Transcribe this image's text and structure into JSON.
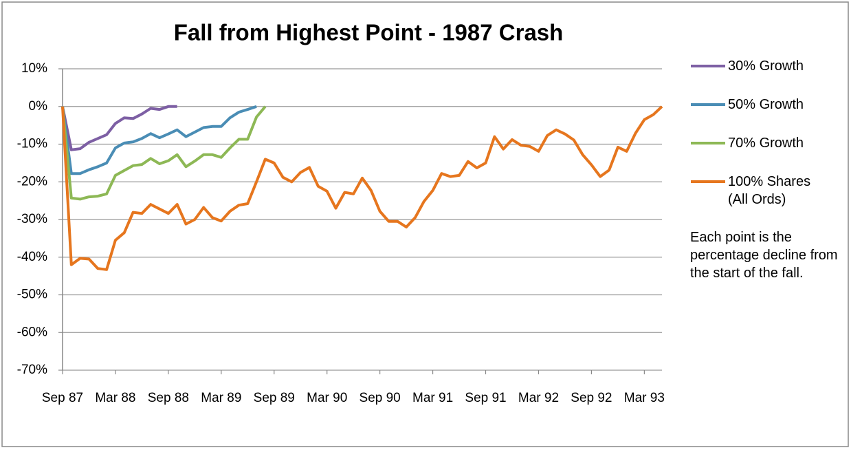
{
  "chart_data": {
    "type": "line",
    "title": "Fall from Highest Point - 1987 Crash",
    "annotation": "Each point is the percentage decline from the start of the fall.",
    "categories": [
      "Sep 87",
      null,
      null,
      null,
      null,
      null,
      "Mar 88",
      null,
      null,
      null,
      null,
      null,
      "Sep 88",
      null,
      null,
      null,
      null,
      null,
      "Mar 89",
      null,
      null,
      null,
      null,
      null,
      "Sep 89",
      null,
      null,
      null,
      null,
      null,
      "Mar 90",
      null,
      null,
      null,
      null,
      null,
      "Sep 90",
      null,
      null,
      null,
      null,
      null,
      "Mar 91",
      null,
      null,
      null,
      null,
      null,
      "Sep 91",
      null,
      null,
      null,
      null,
      null,
      "Mar 92",
      null,
      null,
      null,
      null,
      null,
      "Sep 92",
      null,
      null,
      null,
      null,
      null,
      "Mar 93",
      null,
      null
    ],
    "ylim": [
      -70,
      10
    ],
    "yticks": [
      {
        "value": 10,
        "label": "10%"
      },
      {
        "value": 0,
        "label": "0%"
      },
      {
        "value": -10,
        "label": "-10%"
      },
      {
        "value": -20,
        "label": "-20%"
      },
      {
        "value": -30,
        "label": "-30%"
      },
      {
        "value": -40,
        "label": "-40%"
      },
      {
        "value": -50,
        "label": "-50%"
      },
      {
        "value": -60,
        "label": "-60%"
      },
      {
        "value": -70,
        "label": "-70%"
      }
    ],
    "grid": true,
    "legend": "right",
    "series": [
      {
        "name": "30% Growth",
        "color": "#7d5fa4",
        "values": [
          0,
          -11.5,
          -11.2,
          -9.5,
          -8.5,
          -7.5,
          -4.5,
          -3,
          -3.2,
          -2,
          -0.5,
          -0.8,
          0,
          0,
          null,
          null,
          null,
          null,
          null,
          null,
          null,
          null,
          null,
          null,
          null,
          null,
          null,
          null,
          null,
          null,
          null,
          null,
          null,
          null,
          null,
          null,
          null,
          null,
          null,
          null,
          null,
          null,
          null,
          null,
          null,
          null,
          null,
          null,
          null,
          null,
          null,
          null,
          null,
          null,
          null,
          null,
          null,
          null,
          null,
          null,
          null,
          null,
          null,
          null,
          null,
          null,
          null,
          null,
          null
        ]
      },
      {
        "name": "50% Growth",
        "color": "#4a8db5",
        "values": [
          0,
          -17.8,
          -17.8,
          -16.8,
          -16,
          -15,
          -11,
          -9.7,
          -9.4,
          -8.5,
          -7.2,
          -8.3,
          -7.3,
          -6.2,
          -8,
          -6.8,
          -5.6,
          -5.3,
          -5.3,
          -3,
          -1.5,
          -0.8,
          0,
          null,
          null,
          null,
          null,
          null,
          null,
          null,
          null,
          null,
          null,
          null,
          null,
          null,
          null,
          null,
          null,
          null,
          null,
          null,
          null,
          null,
          null,
          null,
          null,
          null,
          null,
          null,
          null,
          null,
          null,
          null,
          null,
          null,
          null,
          null,
          null,
          null,
          null,
          null,
          null,
          null,
          null,
          null,
          null,
          null,
          null
        ]
      },
      {
        "name": "70% Growth",
        "color": "#8db855",
        "values": [
          0,
          -24.3,
          -24.6,
          -24,
          -23.8,
          -23.2,
          -18.3,
          -17,
          -15.7,
          -15.4,
          -13.8,
          -15.2,
          -14.4,
          -12.8,
          -16,
          -14.5,
          -12.8,
          -12.8,
          -13.5,
          -11,
          -8.7,
          -8.7,
          -2.8,
          0,
          null,
          null,
          null,
          null,
          null,
          null,
          null,
          null,
          null,
          null,
          null,
          null,
          null,
          null,
          null,
          null,
          null,
          null,
          null,
          null,
          null,
          null,
          null,
          null,
          null,
          null,
          null,
          null,
          null,
          null,
          null,
          null,
          null,
          null,
          null,
          null,
          null,
          null,
          null,
          null,
          null,
          null,
          null,
          null,
          null
        ]
      },
      {
        "name": "100% Shares (All Ords)",
        "color": "#e6761e",
        "values": [
          0,
          -42,
          -40.3,
          -40.5,
          -43,
          -43.3,
          -35.5,
          -33.5,
          -28.1,
          -28.4,
          -26,
          -27.2,
          -28.4,
          -26,
          -31.2,
          -30,
          -26.8,
          -29.5,
          -30.4,
          -27.8,
          -26.2,
          -25.8,
          -20,
          -14,
          -15,
          -18.8,
          -20,
          -17.5,
          -16.2,
          -21.2,
          -22.5,
          -27,
          -22.8,
          -23.2,
          -19,
          -22.3,
          -27.8,
          -30.5,
          -30.5,
          -32,
          -29.5,
          -25.2,
          -22.3,
          -17.8,
          -18.6,
          -18.3,
          -14.6,
          -16.3,
          -15,
          -8,
          -11.3,
          -8.8,
          -10.3,
          -10.6,
          -11.9,
          -7.7,
          -6.2,
          -7.3,
          -8.9,
          -12.8,
          -15.5,
          -18.6,
          -16.9,
          -10.8,
          -11.9,
          -7.1,
          -3.5,
          -2.2,
          0
        ]
      }
    ]
  }
}
